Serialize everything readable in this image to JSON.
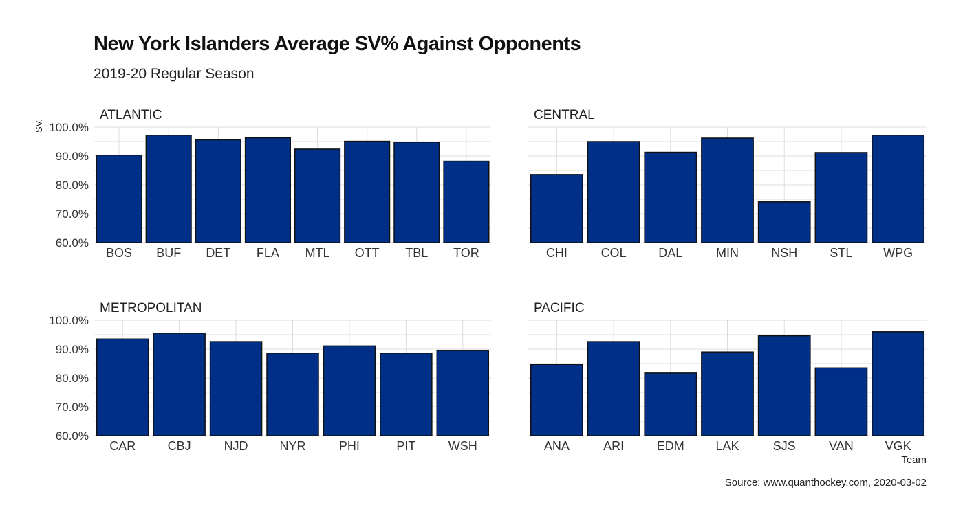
{
  "title": "New York Islanders Average SV% Against Opponents",
  "subtitle": "2019-20 Regular Season",
  "caption": "Source: www.quanthockey.com, 2020-03-02",
  "colors": {
    "bar": "#002F87",
    "bar_outline": "#111111",
    "grid": "#dcdcdc"
  },
  "chart_data": {
    "type": "bar",
    "facets": "2x2",
    "xlabel": "Team",
    "ylabel": "SV.",
    "ylim": [
      0.6,
      1.0
    ],
    "yticks": [
      0.6,
      0.7,
      0.8,
      0.9,
      1.0
    ],
    "ytick_labels": [
      "60.0%",
      "70.0%",
      "80.0%",
      "90.0%",
      "100.0%"
    ],
    "grid": true,
    "panels": [
      {
        "title": "ATLANTIC",
        "categories": [
          "BOS",
          "BUF",
          "DET",
          "FLA",
          "MTL",
          "OTT",
          "TBL",
          "TOR"
        ],
        "values": [
          0.903,
          0.972,
          0.956,
          0.963,
          0.924,
          0.951,
          0.948,
          0.882
        ]
      },
      {
        "title": "CENTRAL",
        "categories": [
          "CHI",
          "COL",
          "DAL",
          "MIN",
          "NSH",
          "STL",
          "WPG"
        ],
        "values": [
          0.836,
          0.95,
          0.913,
          0.962,
          0.741,
          0.912,
          0.972
        ]
      },
      {
        "title": "METROPOLITAN",
        "categories": [
          "CAR",
          "CBJ",
          "NJD",
          "NYR",
          "PHI",
          "PIT",
          "WSH"
        ],
        "values": [
          0.935,
          0.955,
          0.926,
          0.886,
          0.911,
          0.886,
          0.895
        ]
      },
      {
        "title": "PACIFIC",
        "categories": [
          "ANA",
          "ARI",
          "EDM",
          "LAK",
          "SJS",
          "VAN",
          "VGK"
        ],
        "values": [
          0.847,
          0.926,
          0.817,
          0.89,
          0.946,
          0.835,
          0.96
        ]
      }
    ]
  }
}
